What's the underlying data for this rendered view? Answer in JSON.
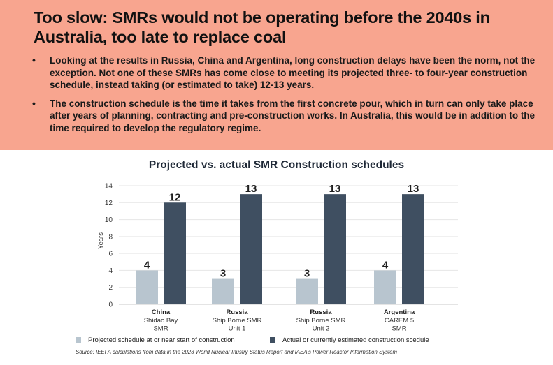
{
  "headline": "Too slow: SMRs would not be operating before the 2040s in Australia, too late to replace coal",
  "bullets": [
    "Looking at the results in Russia, China and Argentina, long construction delays have been the norm, not the exception. Not one of these SMRs has come close to meeting its projected three- to four-year construction schedule, instead taking (or estimated to take) 12-13 years.",
    "The construction schedule is the time it takes from the first concrete pour, which in turn can only take place after years of planning, contracting and pre-construction works. In Australia, this would be in addition to the time required to develop the regulatory regime."
  ],
  "colors": {
    "banner": "#f8a58f",
    "projected": "#b8c5cf",
    "actual": "#3f4f61"
  },
  "chart_data": {
    "type": "bar",
    "title": "Projected vs. actual SMR Construction schedules",
    "ylabel": "Years",
    "xlabel": "",
    "ylim": [
      0,
      14
    ],
    "yticks": [
      0,
      2,
      4,
      6,
      8,
      10,
      12,
      14
    ],
    "grid": true,
    "legend_position": "bottom",
    "categories": [
      {
        "country": "China",
        "lines": [
          "Shidao Bay",
          "SMR"
        ]
      },
      {
        "country": "Russia",
        "lines": [
          "Ship Borne SMR",
          "Unit 1"
        ]
      },
      {
        "country": "Russia",
        "lines": [
          "Ship Borne SMR",
          "Unit 2"
        ]
      },
      {
        "country": "Argentina",
        "lines": [
          "CAREM 5",
          "SMR"
        ]
      }
    ],
    "series": [
      {
        "name": "Projected schedule at or near start of construction",
        "values": [
          4,
          3,
          3,
          4
        ]
      },
      {
        "name": "Actual or currently estimated construction scedule",
        "values": [
          12,
          13,
          13,
          13
        ]
      }
    ]
  },
  "source": "Source: IEEFA calculations from data in the 2023 World Nuclear Inustry Status Report and IAEA's Power Reactor Information System"
}
